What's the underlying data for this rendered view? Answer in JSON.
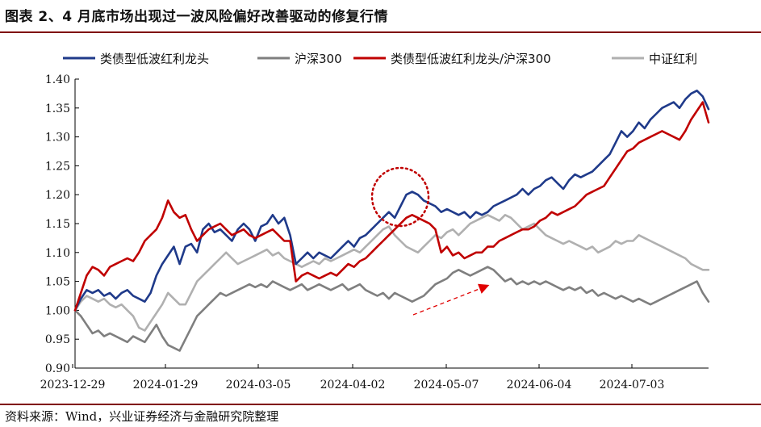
{
  "title": "图表 2、4 月底市场出现过一波风险偏好改善驱动的修复行情",
  "source": "资料来源：Wind，兴业证券经济与金融研究院整理",
  "chart_data": {
    "type": "line",
    "x_tick_labels": [
      "2023-12-29",
      "2024-01-29",
      "2024-03-05",
      "2024-04-02",
      "2024-05-07",
      "2024-06-04",
      "2024-07-03"
    ],
    "ylim": [
      0.9,
      1.4
    ],
    "y_ticks": [
      "0.90",
      "0.95",
      "1.00",
      "1.05",
      "1.10",
      "1.15",
      "1.20",
      "1.25",
      "1.30",
      "1.35",
      "1.40"
    ],
    "grid": false,
    "legend_position": "top",
    "annotations": [
      {
        "type": "dotted-circle",
        "color": "#c00000",
        "around": "late April peak"
      },
      {
        "type": "dashed-arrow",
        "color": "#e00000",
        "along": "沪深300 recovery, late April to May"
      }
    ],
    "series": [
      {
        "name": "类债型低波红利龙头",
        "color": "#1f3a8a",
        "values": [
          1.0,
          1.02,
          1.035,
          1.03,
          1.035,
          1.025,
          1.03,
          1.02,
          1.03,
          1.035,
          1.025,
          1.02,
          1.015,
          1.03,
          1.06,
          1.08,
          1.095,
          1.11,
          1.08,
          1.11,
          1.115,
          1.1,
          1.14,
          1.15,
          1.135,
          1.14,
          1.13,
          1.12,
          1.14,
          1.15,
          1.14,
          1.12,
          1.145,
          1.15,
          1.165,
          1.15,
          1.16,
          1.13,
          1.08,
          1.09,
          1.1,
          1.09,
          1.1,
          1.095,
          1.09,
          1.1,
          1.11,
          1.12,
          1.11,
          1.125,
          1.13,
          1.14,
          1.15,
          1.16,
          1.17,
          1.16,
          1.18,
          1.2,
          1.205,
          1.2,
          1.19,
          1.185,
          1.18,
          1.17,
          1.175,
          1.17,
          1.165,
          1.17,
          1.16,
          1.17,
          1.165,
          1.17,
          1.18,
          1.185,
          1.19,
          1.195,
          1.2,
          1.21,
          1.2,
          1.21,
          1.215,
          1.225,
          1.23,
          1.22,
          1.21,
          1.225,
          1.235,
          1.23,
          1.235,
          1.24,
          1.25,
          1.26,
          1.27,
          1.29,
          1.31,
          1.3,
          1.31,
          1.325,
          1.315,
          1.33,
          1.34,
          1.35,
          1.355,
          1.36,
          1.35,
          1.365,
          1.375,
          1.38,
          1.37,
          1.348
        ]
      },
      {
        "name": "沪深300",
        "color": "#7f7f7f",
        "values": [
          1.0,
          0.99,
          0.975,
          0.96,
          0.965,
          0.955,
          0.96,
          0.955,
          0.95,
          0.945,
          0.955,
          0.95,
          0.945,
          0.96,
          0.975,
          0.955,
          0.94,
          0.935,
          0.93,
          0.95,
          0.97,
          0.99,
          1.0,
          1.01,
          1.02,
          1.03,
          1.025,
          1.03,
          1.035,
          1.04,
          1.045,
          1.04,
          1.045,
          1.04,
          1.05,
          1.045,
          1.04,
          1.035,
          1.04,
          1.045,
          1.035,
          1.04,
          1.045,
          1.04,
          1.035,
          1.04,
          1.045,
          1.035,
          1.04,
          1.045,
          1.035,
          1.03,
          1.025,
          1.03,
          1.02,
          1.03,
          1.025,
          1.02,
          1.015,
          1.02,
          1.025,
          1.035,
          1.045,
          1.05,
          1.055,
          1.065,
          1.07,
          1.065,
          1.06,
          1.065,
          1.07,
          1.075,
          1.07,
          1.06,
          1.05,
          1.055,
          1.045,
          1.05,
          1.045,
          1.05,
          1.045,
          1.05,
          1.045,
          1.04,
          1.035,
          1.04,
          1.035,
          1.04,
          1.03,
          1.035,
          1.025,
          1.03,
          1.025,
          1.02,
          1.025,
          1.02,
          1.015,
          1.02,
          1.015,
          1.01,
          1.015,
          1.02,
          1.025,
          1.03,
          1.035,
          1.04,
          1.045,
          1.05,
          1.03,
          1.015
        ]
      },
      {
        "name": "类债型低波红利龙头/沪深300",
        "color": "#c00000",
        "values": [
          1.0,
          1.03,
          1.06,
          1.075,
          1.07,
          1.06,
          1.075,
          1.08,
          1.085,
          1.09,
          1.085,
          1.1,
          1.12,
          1.13,
          1.14,
          1.16,
          1.19,
          1.17,
          1.16,
          1.165,
          1.14,
          1.12,
          1.13,
          1.14,
          1.145,
          1.15,
          1.14,
          1.13,
          1.135,
          1.14,
          1.13,
          1.125,
          1.13,
          1.135,
          1.14,
          1.13,
          1.12,
          1.12,
          1.05,
          1.06,
          1.065,
          1.06,
          1.055,
          1.06,
          1.065,
          1.06,
          1.07,
          1.08,
          1.075,
          1.085,
          1.09,
          1.1,
          1.11,
          1.12,
          1.13,
          1.14,
          1.15,
          1.16,
          1.165,
          1.16,
          1.155,
          1.15,
          1.14,
          1.1,
          1.11,
          1.095,
          1.1,
          1.09,
          1.095,
          1.1,
          1.1,
          1.11,
          1.11,
          1.12,
          1.125,
          1.13,
          1.135,
          1.14,
          1.14,
          1.145,
          1.155,
          1.16,
          1.17,
          1.165,
          1.17,
          1.175,
          1.18,
          1.19,
          1.2,
          1.205,
          1.21,
          1.215,
          1.23,
          1.245,
          1.26,
          1.275,
          1.28,
          1.29,
          1.295,
          1.3,
          1.305,
          1.31,
          1.305,
          1.3,
          1.295,
          1.31,
          1.33,
          1.345,
          1.36,
          1.325
        ]
      },
      {
        "name": "中证红利",
        "color": "#b0b0b0",
        "values": [
          1.0,
          1.015,
          1.025,
          1.02,
          1.015,
          1.02,
          1.01,
          1.005,
          1.01,
          1.0,
          0.99,
          0.97,
          0.965,
          0.98,
          0.995,
          1.01,
          1.03,
          1.02,
          1.01,
          1.01,
          1.03,
          1.05,
          1.06,
          1.07,
          1.08,
          1.09,
          1.1,
          1.09,
          1.08,
          1.085,
          1.09,
          1.095,
          1.1,
          1.105,
          1.095,
          1.1,
          1.09,
          1.085,
          1.08,
          1.075,
          1.08,
          1.085,
          1.08,
          1.09,
          1.085,
          1.09,
          1.095,
          1.1,
          1.105,
          1.1,
          1.11,
          1.12,
          1.13,
          1.14,
          1.145,
          1.13,
          1.12,
          1.11,
          1.105,
          1.1,
          1.11,
          1.12,
          1.13,
          1.125,
          1.135,
          1.14,
          1.13,
          1.14,
          1.15,
          1.155,
          1.16,
          1.165,
          1.16,
          1.155,
          1.165,
          1.16,
          1.15,
          1.14,
          1.145,
          1.15,
          1.14,
          1.13,
          1.125,
          1.12,
          1.115,
          1.12,
          1.115,
          1.11,
          1.105,
          1.11,
          1.1,
          1.105,
          1.11,
          1.12,
          1.115,
          1.12,
          1.12,
          1.13,
          1.125,
          1.12,
          1.115,
          1.11,
          1.105,
          1.1,
          1.095,
          1.09,
          1.08,
          1.075,
          1.07,
          1.07
        ]
      }
    ]
  }
}
